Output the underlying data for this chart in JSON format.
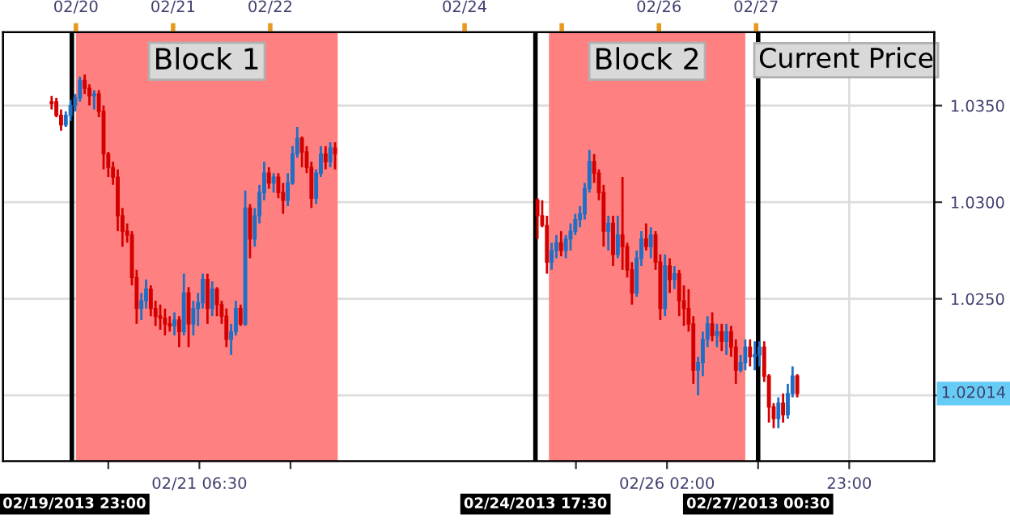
{
  "chart_data": {
    "type": "candlestick",
    "x": [
      "2013-02-19T18:00",
      "2013-02-19T19:10",
      "2013-02-19T20:20",
      "2013-02-19T21:30",
      "2013-02-19T22:40",
      "2013-02-19T23:50",
      "2013-02-20T01:00",
      "2013-02-20T02:10",
      "2013-02-20T03:20",
      "2013-02-20T04:30",
      "2013-02-20T05:40",
      "2013-02-20T06:50",
      "2013-02-20T08:00",
      "2013-02-20T09:10",
      "2013-02-20T10:20",
      "2013-02-20T11:30",
      "2013-02-20T12:40",
      "2013-02-20T13:50",
      "2013-02-20T15:00",
      "2013-02-20T16:10",
      "2013-02-20T17:20",
      "2013-02-20T18:30",
      "2013-02-20T19:40",
      "2013-02-20T20:50",
      "2013-02-20T22:00",
      "2013-02-20T23:10",
      "2013-02-21T00:20",
      "2013-02-21T01:30",
      "2013-02-21T02:40",
      "2013-02-21T03:50",
      "2013-02-21T05:00",
      "2013-02-21T06:10",
      "2013-02-21T07:20",
      "2013-02-21T08:30",
      "2013-02-21T09:40",
      "2013-02-21T10:50",
      "2013-02-21T12:00",
      "2013-02-21T13:10",
      "2013-02-21T14:20",
      "2013-02-21T15:30",
      "2013-02-21T16:40",
      "2013-02-21T17:50",
      "2013-02-21T19:00",
      "2013-02-21T20:10",
      "2013-02-21T21:20",
      "2013-02-21T22:30",
      "2013-02-21T23:40",
      "2013-02-22T00:50",
      "2013-02-22T02:00",
      "2013-02-22T03:10",
      "2013-02-22T04:20",
      "2013-02-22T05:30",
      "2013-02-22T06:40",
      "2013-02-22T07:50",
      "2013-02-22T09:00",
      "2013-02-22T10:10",
      "2013-02-22T11:20",
      "2013-02-22T12:30",
      "2013-02-22T13:40",
      "2013-02-22T14:50",
      "2013-02-22T16:00",
      "2013-02-24T18:00",
      "2013-02-24T19:10",
      "2013-02-24T20:20",
      "2013-02-24T21:30",
      "2013-02-24T22:40",
      "2013-02-24T23:50",
      "2013-02-25T01:00",
      "2013-02-25T02:10",
      "2013-02-25T03:20",
      "2013-02-25T04:30",
      "2013-02-25T05:40",
      "2013-02-25T06:50",
      "2013-02-25T08:00",
      "2013-02-25T09:10",
      "2013-02-25T10:20",
      "2013-02-25T11:30",
      "2013-02-25T12:40",
      "2013-02-25T13:50",
      "2013-02-25T15:00",
      "2013-02-25T16:10",
      "2013-02-25T17:20",
      "2013-02-25T18:30",
      "2013-02-25T19:40",
      "2013-02-25T20:50",
      "2013-02-25T22:00",
      "2013-02-25T23:10",
      "2013-02-26T00:20",
      "2013-02-26T01:30",
      "2013-02-26T02:40",
      "2013-02-26T03:50",
      "2013-02-26T05:00",
      "2013-02-26T06:10",
      "2013-02-26T07:20",
      "2013-02-26T08:30",
      "2013-02-26T09:40",
      "2013-02-26T10:50",
      "2013-02-26T12:00",
      "2013-02-26T13:10",
      "2013-02-26T14:20",
      "2013-02-26T15:30",
      "2013-02-26T16:40",
      "2013-02-26T17:50",
      "2013-02-26T19:00",
      "2013-02-26T20:10",
      "2013-02-26T21:20",
      "2013-02-26T22:30",
      "2013-02-26T23:40",
      "2013-02-27T00:50",
      "2013-02-27T02:00",
      "2013-02-27T03:10",
      "2013-02-27T04:20",
      "2013-02-27T05:30",
      "2013-02-27T06:40",
      "2013-02-27T07:50",
      "2013-02-27T09:00",
      "2013-02-27T10:10"
    ],
    "ohlc": [
      [
        1.0352,
        1.0355,
        1.0348,
        1.0351
      ],
      [
        1.0352,
        1.0354,
        1.0344,
        1.0345
      ],
      [
        1.0345,
        1.0348,
        1.0337,
        1.034
      ],
      [
        1.034,
        1.0347,
        1.0339,
        1.0345
      ],
      [
        1.0345,
        1.0353,
        1.0342,
        1.035
      ],
      [
        1.035,
        1.0356,
        1.0347,
        1.0354
      ],
      [
        1.0354,
        1.0365,
        1.0352,
        1.0363
      ],
      [
        1.0363,
        1.0366,
        1.0356,
        1.0359
      ],
      [
        1.0359,
        1.0361,
        1.035,
        1.0355
      ],
      [
        1.0355,
        1.0358,
        1.0348,
        1.0356
      ],
      [
        1.0356,
        1.0358,
        1.0344,
        1.0347
      ],
      [
        1.0347,
        1.035,
        1.0317,
        1.0325
      ],
      [
        1.0325,
        1.0326,
        1.0313,
        1.0318
      ],
      [
        1.0318,
        1.0321,
        1.0309,
        1.0313
      ],
      [
        1.0313,
        1.0317,
        1.0285,
        1.0293
      ],
      [
        1.0293,
        1.0297,
        1.0277,
        1.0285
      ],
      [
        1.0285,
        1.0289,
        1.0279,
        1.0283
      ],
      [
        1.0283,
        1.0285,
        1.0257,
        1.0261
      ],
      [
        1.0261,
        1.0265,
        1.0237,
        1.0245
      ],
      [
        1.0245,
        1.0253,
        1.0239,
        1.0249
      ],
      [
        1.0249,
        1.026,
        1.0245,
        1.0255
      ],
      [
        1.0255,
        1.0257,
        1.0241,
        1.0245
      ],
      [
        1.0245,
        1.0249,
        1.0236,
        1.0241
      ],
      [
        1.0241,
        1.0247,
        1.0234,
        1.024
      ],
      [
        1.024,
        1.0245,
        1.0231,
        1.0237
      ],
      [
        1.0237,
        1.0241,
        1.0233,
        1.0236
      ],
      [
        1.0236,
        1.0243,
        1.0231,
        1.0239
      ],
      [
        1.0239,
        1.0241,
        1.0225,
        1.0233
      ],
      [
        1.0233,
        1.0263,
        1.0231,
        1.0253
      ],
      [
        1.0253,
        1.0256,
        1.0225,
        1.0237
      ],
      [
        1.0237,
        1.0249,
        1.0231,
        1.0245
      ],
      [
        1.0245,
        1.0253,
        1.0236,
        1.0248
      ],
      [
        1.0248,
        1.0263,
        1.0245,
        1.026
      ],
      [
        1.026,
        1.0263,
        1.0237,
        1.0245
      ],
      [
        1.0245,
        1.0259,
        1.0241,
        1.0255
      ],
      [
        1.0255,
        1.0256,
        1.0241,
        1.0247
      ],
      [
        1.0247,
        1.0249,
        1.0237,
        1.0241
      ],
      [
        1.0241,
        1.0245,
        1.0225,
        1.0229
      ],
      [
        1.0229,
        1.0237,
        1.0221,
        1.0233
      ],
      [
        1.0233,
        1.0249,
        1.0231,
        1.0245
      ],
      [
        1.0245,
        1.0247,
        1.0236,
        1.0237
      ],
      [
        1.0237,
        1.0306,
        1.0236,
        1.0297
      ],
      [
        1.0297,
        1.0299,
        1.0271,
        1.0281
      ],
      [
        1.0281,
        1.0297,
        1.0277,
        1.0293
      ],
      [
        1.0293,
        1.0309,
        1.0289,
        1.0305
      ],
      [
        1.0305,
        1.0321,
        1.0301,
        1.0315
      ],
      [
        1.0315,
        1.0318,
        1.0307,
        1.031
      ],
      [
        1.031,
        1.0315,
        1.0305,
        1.0313
      ],
      [
        1.0313,
        1.0315,
        1.0302,
        1.0305
      ],
      [
        1.0305,
        1.031,
        1.0294,
        1.0301
      ],
      [
        1.0301,
        1.0315,
        1.0298,
        1.031
      ],
      [
        1.031,
        1.0329,
        1.0309,
        1.0325
      ],
      [
        1.0325,
        1.0339,
        1.0323,
        1.0333
      ],
      [
        1.0333,
        1.0334,
        1.0318,
        1.0326
      ],
      [
        1.0326,
        1.0329,
        1.0315,
        1.0318
      ],
      [
        1.0318,
        1.0321,
        1.0297,
        1.0302
      ],
      [
        1.0302,
        1.0317,
        1.0299,
        1.0315
      ],
      [
        1.0315,
        1.0329,
        1.0313,
        1.0325
      ],
      [
        1.0325,
        1.0329,
        1.0317,
        1.0321
      ],
      [
        1.0321,
        1.0331,
        1.0318,
        1.0328
      ],
      [
        1.0328,
        1.0331,
        1.0317,
        1.0325
      ],
      [
        1.0301,
        1.0302,
        1.0281,
        1.0293
      ],
      [
        1.0293,
        1.0301,
        1.0287,
        1.0288
      ],
      [
        1.0288,
        1.0293,
        1.0263,
        1.0269
      ],
      [
        1.0269,
        1.0279,
        1.0265,
        1.0275
      ],
      [
        1.0275,
        1.0283,
        1.0271,
        1.0279
      ],
      [
        1.0279,
        1.0285,
        1.0272,
        1.0275
      ],
      [
        1.0275,
        1.0283,
        1.0271,
        1.0281
      ],
      [
        1.0281,
        1.0289,
        1.0275,
        1.0285
      ],
      [
        1.0285,
        1.0294,
        1.0283,
        1.0291
      ],
      [
        1.0291,
        1.0298,
        1.0287,
        1.0294
      ],
      [
        1.0294,
        1.031,
        1.0291,
        1.0307
      ],
      [
        1.0307,
        1.0327,
        1.0305,
        1.0321
      ],
      [
        1.0321,
        1.0325,
        1.031,
        1.0315
      ],
      [
        1.0315,
        1.0317,
        1.0301,
        1.0305
      ],
      [
        1.0305,
        1.0309,
        1.0277,
        1.0285
      ],
      [
        1.0285,
        1.0293,
        1.0275,
        1.0289
      ],
      [
        1.0289,
        1.0293,
        1.0267,
        1.0273
      ],
      [
        1.0273,
        1.0293,
        1.0271,
        1.0283
      ],
      [
        1.0283,
        1.0313,
        1.0265,
        1.0277
      ],
      [
        1.0277,
        1.0279,
        1.0261,
        1.0265
      ],
      [
        1.0265,
        1.0269,
        1.0247,
        1.0253
      ],
      [
        1.0253,
        1.0275,
        1.0251,
        1.0271
      ],
      [
        1.0271,
        1.0285,
        1.0267,
        1.0281
      ],
      [
        1.0281,
        1.0289,
        1.0275,
        1.0277
      ],
      [
        1.0277,
        1.0287,
        1.0271,
        1.0283
      ],
      [
        1.0283,
        1.0285,
        1.0265,
        1.0269
      ],
      [
        1.0269,
        1.0273,
        1.0239,
        1.0245
      ],
      [
        1.0245,
        1.0273,
        1.0241,
        1.0267
      ],
      [
        1.0267,
        1.0271,
        1.0253,
        1.026
      ],
      [
        1.026,
        1.0267,
        1.0255,
        1.0263
      ],
      [
        1.0263,
        1.0265,
        1.0241,
        1.0249
      ],
      [
        1.0249,
        1.0257,
        1.0236,
        1.0245
      ],
      [
        1.0245,
        1.0255,
        1.0233,
        1.0237
      ],
      [
        1.0237,
        1.0241,
        1.0206,
        1.0213
      ],
      [
        1.0213,
        1.022,
        1.02,
        1.0217
      ],
      [
        1.0217,
        1.0233,
        1.021,
        1.0229
      ],
      [
        1.0229,
        1.0241,
        1.0225,
        1.0237
      ],
      [
        1.0237,
        1.0243,
        1.0228,
        1.0231
      ],
      [
        1.0231,
        1.0237,
        1.0225,
        1.0233
      ],
      [
        1.0233,
        1.0237,
        1.0223,
        1.0228
      ],
      [
        1.0228,
        1.0237,
        1.0221,
        1.0233
      ],
      [
        1.0233,
        1.0236,
        1.022,
        1.0225
      ],
      [
        1.0225,
        1.0229,
        1.0206,
        1.0213
      ],
      [
        1.0213,
        1.0221,
        1.0212,
        1.0217
      ],
      [
        1.0217,
        1.0229,
        1.0213,
        1.0225
      ],
      [
        1.0225,
        1.0229,
        1.0215,
        1.022
      ],
      [
        1.022,
        1.0228,
        1.0213,
        1.0221
      ],
      [
        1.0221,
        1.0228,
        1.0215,
        1.0225
      ],
      [
        1.0225,
        1.0228,
        1.0207,
        1.021
      ],
      [
        1.021,
        1.0211,
        1.0186,
        1.0194
      ],
      [
        1.0194,
        1.0196,
        1.0183,
        1.0188
      ],
      [
        1.0188,
        1.0199,
        1.0183,
        1.0196
      ],
      [
        1.0196,
        1.0201,
        1.0186,
        1.019
      ],
      [
        1.019,
        1.0206,
        1.0188,
        1.0201
      ],
      [
        1.0201,
        1.0215,
        1.0199,
        1.021
      ],
      [
        1.021,
        1.0211,
        1.0199,
        1.0201
      ]
    ],
    "colors": [
      "#d40000",
      "#d40000",
      "#d40000",
      "#1f6fc5",
      "#1f6fc5",
      "#1f6fc5",
      "#1f6fc5",
      "#d40000",
      "#d40000",
      "#1f6fc5",
      "#d40000",
      "#d40000",
      "#d40000",
      "#d40000",
      "#d40000",
      "#d40000",
      "#d40000",
      "#d40000",
      "#d40000",
      "#1f6fc5",
      "#1f6fc5",
      "#d40000",
      "#d40000",
      "#d40000",
      "#d40000",
      "#d40000",
      "#1f6fc5",
      "#d40000",
      "#1f6fc5",
      "#d40000",
      "#1f6fc5",
      "#1f6fc5",
      "#1f6fc5",
      "#d40000",
      "#1f6fc5",
      "#d40000",
      "#d40000",
      "#d40000",
      "#1f6fc5",
      "#1f6fc5",
      "#d40000",
      "#1f6fc5",
      "#d40000",
      "#1f6fc5",
      "#1f6fc5",
      "#1f6fc5",
      "#d40000",
      "#1f6fc5",
      "#d40000",
      "#d40000",
      "#1f6fc5",
      "#1f6fc5",
      "#1f6fc5",
      "#d40000",
      "#d40000",
      "#d40000",
      "#1f6fc5",
      "#1f6fc5",
      "#d40000",
      "#1f6fc5",
      "#d40000",
      "#d40000",
      "#d40000",
      "#d40000",
      "#1f6fc5",
      "#1f6fc5",
      "#d40000",
      "#1f6fc5",
      "#1f6fc5",
      "#1f6fc5",
      "#1f6fc5",
      "#1f6fc5",
      "#1f6fc5",
      "#d40000",
      "#d40000",
      "#d40000",
      "#1f6fc5",
      "#d40000",
      "#1f6fc5",
      "#d40000",
      "#d40000",
      "#d40000",
      "#1f6fc5",
      "#1f6fc5",
      "#d40000",
      "#1f6fc5",
      "#d40000",
      "#d40000",
      "#1f6fc5",
      "#d40000",
      "#1f6fc5",
      "#d40000",
      "#d40000",
      "#d40000",
      "#d40000",
      "#1f6fc5",
      "#1f6fc5",
      "#1f6fc5",
      "#d40000",
      "#1f6fc5",
      "#d40000",
      "#1f6fc5",
      "#d40000",
      "#d40000",
      "#1f6fc5",
      "#1f6fc5",
      "#d40000",
      "#1f6fc5",
      "#1f6fc5",
      "#d40000",
      "#d40000",
      "#d40000",
      "#1f6fc5",
      "#d40000",
      "#1f6fc5",
      "#1f6fc5",
      "#d40000"
    ],
    "xlim": [
      "2013-02-19T06:00",
      "2013-02-28T20:00"
    ],
    "xticks": [
      {
        "value": "2013-02-20T08:00",
        "label": null
      },
      {
        "value": "2013-02-21T06:30",
        "label": "02/21 06:30"
      },
      {
        "value": "2013-02-22T05:00",
        "label": null
      },
      {
        "value": "2013-02-25T03:30",
        "label": null
      },
      {
        "value": "2013-02-26T02:00",
        "label": "02/26 02:00"
      },
      {
        "value": "2013-02-27T00:30",
        "label": null
      },
      {
        "value": "2013-02-27T23:00",
        "label": "23:00"
      }
    ],
    "x2lim": [
      "2013-02-19T06:00",
      "2013-02-28T20:00"
    ],
    "x2ticks": [
      {
        "value": "2013-02-20",
        "label": "02/20"
      },
      {
        "value": "2013-02-21",
        "label": "02/21"
      },
      {
        "value": "2013-02-22",
        "label": "02/22"
      },
      {
        "value": "2013-02-24",
        "label": "02/24"
      },
      {
        "value": "2013-02-25",
        "label": null
      },
      {
        "value": "2013-02-26",
        "label": "02/26"
      },
      {
        "value": "2013-02-27",
        "label": "02/27"
      }
    ],
    "ylim": [
      1.0166,
      1.0388
    ],
    "yticks": [
      {
        "value": 1.02,
        "label": null
      },
      {
        "value": 1.025,
        "label": "1.0250"
      },
      {
        "value": 1.03,
        "label": "1.0300"
      },
      {
        "value": 1.035,
        "label": "1.0350"
      }
    ],
    "grid": true,
    "ref_lines": [
      {
        "axis": "x",
        "value": "2013-02-19T23:00",
        "label": "02/19/2013 23:00",
        "color": "#000000"
      },
      {
        "axis": "x",
        "value": "2013-02-24T17:30",
        "label": "02/24/2013 17:30",
        "color": "#000000"
      },
      {
        "axis": "x",
        "value": "2013-02-27T00:30",
        "label": "02/27/2013 00:30",
        "color": "#000000"
      }
    ],
    "bands": [
      {
        "axis": "x",
        "from": "2013-02-20T00:00",
        "to": "2013-02-22T16:40",
        "label": "Block 1",
        "color": "#ff8080"
      },
      {
        "axis": "x",
        "from": "2013-02-24T20:50",
        "to": "2013-02-26T21:20",
        "label": "Block 2",
        "color": "#ff8080"
      }
    ],
    "annotations": [
      "Current Price",
      "1.02014"
    ]
  }
}
